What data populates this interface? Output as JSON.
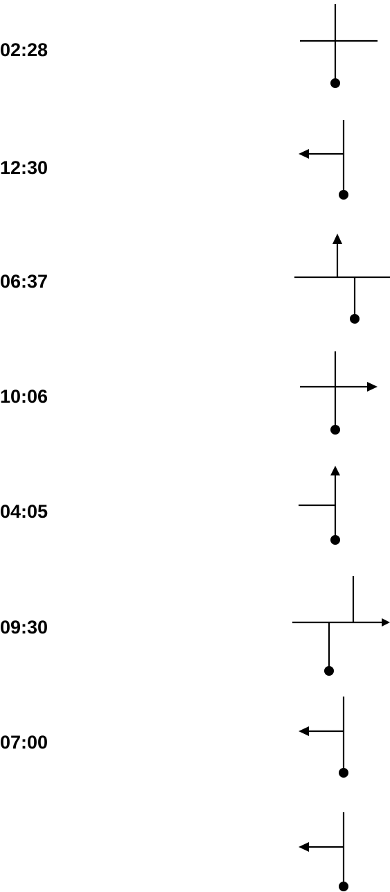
{
  "rows": [
    {
      "time": "02:28",
      "arrow": "none"
    },
    {
      "time": "12:30",
      "arrow": "left"
    },
    {
      "time": "06:37",
      "arrow": "up"
    },
    {
      "time": "10:06",
      "arrow": "right"
    },
    {
      "time": "04:05",
      "arrow": "up"
    },
    {
      "time": "09:30",
      "arrow": "right"
    },
    {
      "time": "07:00",
      "arrow": "left"
    },
    {
      "time": "",
      "arrow": "left"
    }
  ],
  "colors": {
    "ink": "#000000",
    "background": "#ffffff"
  },
  "icons": {
    "line_end": "dot-icon",
    "arrow": "arrowhead-icon"
  }
}
